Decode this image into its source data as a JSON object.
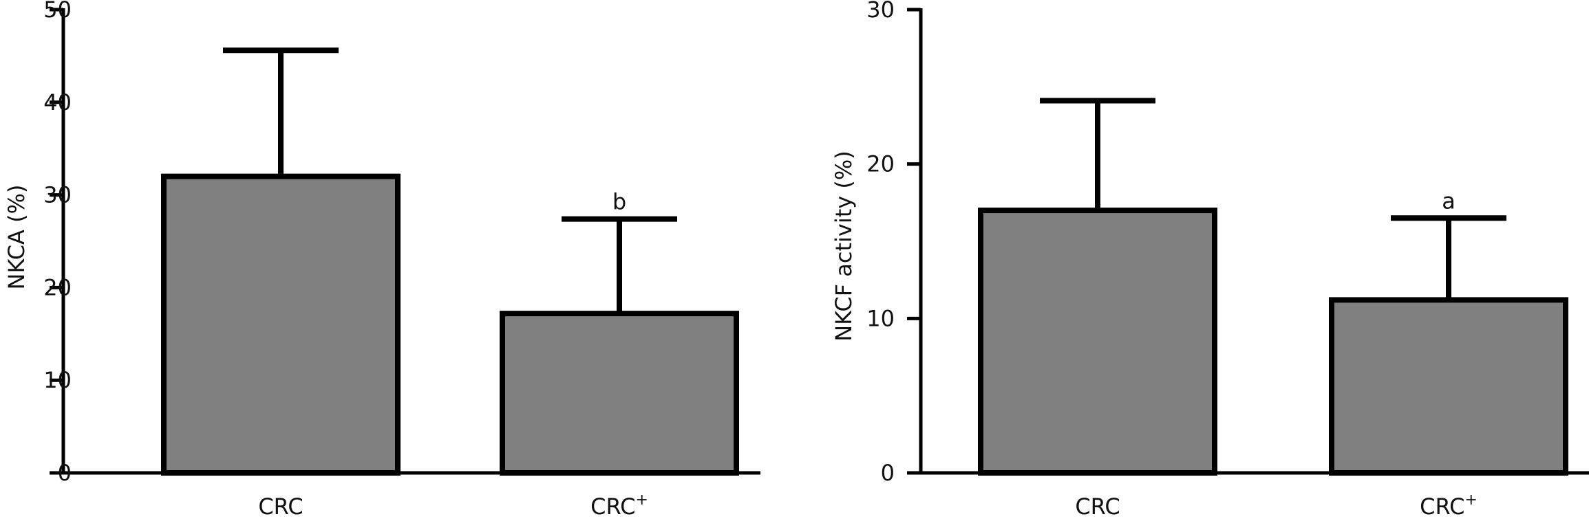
{
  "chart_data": [
    {
      "type": "bar",
      "ylabel": "NKCA (%)",
      "ylim": [
        0,
        50
      ],
      "yticks": [
        0,
        10,
        20,
        30,
        40,
        50
      ],
      "categories": [
        {
          "base": "CRC",
          "sup": ""
        },
        {
          "base": "CRC",
          "sup": "+"
        }
      ],
      "values": [
        32,
        17.2
      ],
      "errors": [
        13.6,
        10.2
      ],
      "significance": [
        "",
        "b"
      ],
      "grid": false,
      "colors": {
        "bar": "#808080",
        "stroke": "#000000"
      }
    },
    {
      "type": "bar",
      "ylabel": "NKCF activity (%)",
      "ylim": [
        0,
        30
      ],
      "yticks": [
        0,
        10,
        20,
        30
      ],
      "categories": [
        {
          "base": "CRC",
          "sup": ""
        },
        {
          "base": "CRC",
          "sup": "+"
        }
      ],
      "values": [
        17,
        11.2
      ],
      "errors": [
        7.1,
        5.3
      ],
      "significance": [
        "",
        "a"
      ],
      "grid": false,
      "colors": {
        "bar": "#808080",
        "stroke": "#000000"
      }
    }
  ]
}
